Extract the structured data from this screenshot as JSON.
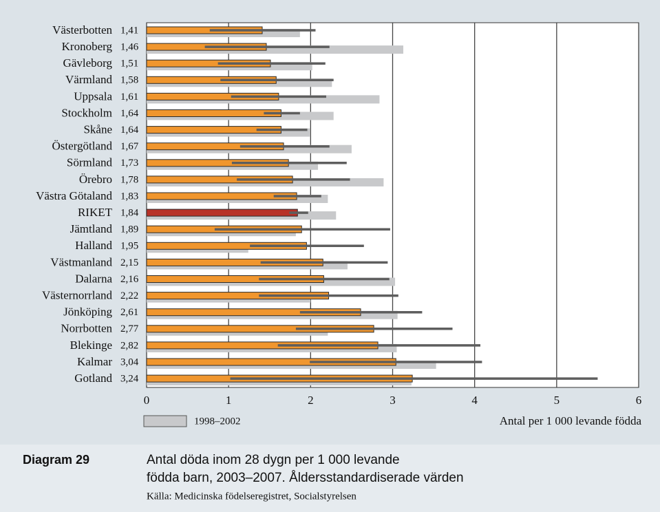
{
  "chart_data": {
    "type": "bar",
    "caption_label": "Diagram 29",
    "title": [
      "Antal döda inom 28 dygn per 1 000 levande",
      "födda barn, 2003–2007. Åldersstandardiserade värden"
    ],
    "source": "Källa: Medicinska födelseregistret, Socialstyrelsen",
    "x_label": "Antal per 1 000 levande födda",
    "categories": [
      "Västerbotten",
      "Kronoberg",
      "Gävleborg",
      "Värmland",
      "Uppsala",
      "Stockholm",
      "Skåne",
      "Östergötland",
      "Sörmland",
      "Örebro",
      "Västra Götaland",
      "RIKET",
      "Jämtland",
      "Halland",
      "Västmanland",
      "Dalarna",
      "Västernorrland",
      "Jönköping",
      "Norrbotten",
      "Blekinge",
      "Kalmar",
      "Gotland"
    ],
    "series": [
      {
        "color": "#f0962e",
        "colors": [
          "#f0962e",
          "#f0962e",
          "#f0962e",
          "#f0962e",
          "#f0962e",
          "#f0962e",
          "#f0962e",
          "#f0962e",
          "#f0962e",
          "#f0962e",
          "#f0962e",
          "#b83228",
          "#f0962e",
          "#f0962e",
          "#f0962e",
          "#f0962e",
          "#f0962e",
          "#f0962e",
          "#f0962e",
          "#f0962e",
          "#f0962e",
          "#f0962e"
        ],
        "values": [
          1.41,
          1.46,
          1.51,
          1.58,
          1.61,
          1.64,
          1.64,
          1.67,
          1.73,
          1.78,
          1.83,
          1.84,
          1.89,
          1.95,
          2.15,
          2.16,
          2.22,
          2.61,
          2.77,
          2.82,
          3.04,
          3.24
        ],
        "value_labels": [
          "1,41",
          "1,46",
          "1,51",
          "1,58",
          "1,61",
          "1,64",
          "1,64",
          "1,67",
          "1,73",
          "1,78",
          "1,83",
          "1,84",
          "1,89",
          "1,95",
          "2,15",
          "2,16",
          "2,22",
          "2,61",
          "2,77",
          "2,82",
          "3,04",
          "3,24"
        ],
        "ci_low": [
          0.77,
          0.71,
          0.87,
          0.9,
          1.03,
          1.43,
          1.34,
          1.14,
          1.04,
          1.1,
          1.55,
          1.74,
          0.83,
          1.26,
          1.39,
          1.37,
          1.37,
          1.87,
          1.82,
          1.6,
          1.99,
          1.02
        ],
        "ci_high": [
          2.06,
          2.23,
          2.18,
          2.28,
          2.19,
          1.87,
          1.96,
          2.23,
          2.44,
          2.48,
          2.13,
          1.97,
          2.97,
          2.65,
          2.94,
          2.96,
          3.07,
          3.36,
          3.73,
          4.07,
          4.09,
          5.5
        ]
      },
      {
        "name": "1998–2002",
        "color": "#c8c9cb",
        "values": [
          1.87,
          3.13,
          2.02,
          2.26,
          2.84,
          2.28,
          1.99,
          2.5,
          2.09,
          2.89,
          2.21,
          2.31,
          1.82,
          1.24,
          2.45,
          3.03,
          2.0,
          3.06,
          2.21,
          3.05,
          3.53,
          3.23
        ]
      }
    ],
    "ci_color": "#5e5e5e",
    "xlim": [
      0,
      6
    ],
    "xticks": [
      0,
      1,
      2,
      3,
      4,
      5,
      6
    ],
    "grid": true
  }
}
